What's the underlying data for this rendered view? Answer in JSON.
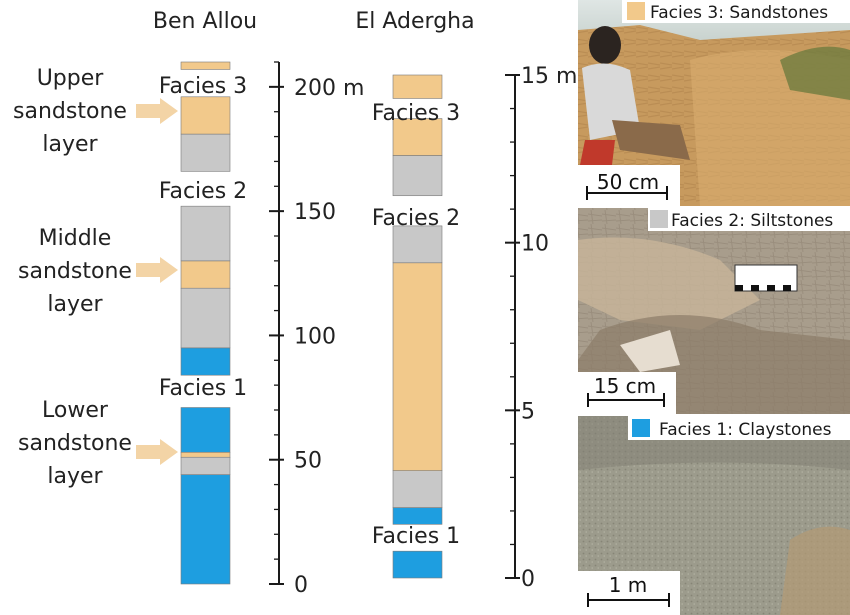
{
  "colors": {
    "sandstone": "#f2c98b",
    "siltstone": "#c8c8c8",
    "claystone": "#1e9ee0",
    "arrow": "#f3d4a6",
    "axis": "#1a1a1a"
  },
  "columns": {
    "ben_allou": {
      "title": "Ben Allou",
      "facies_labels": [
        "Facies 3",
        "Facies 2",
        "Facies 1"
      ],
      "layer_labels": {
        "upper": [
          "Upper",
          "sandstone",
          "layer"
        ],
        "middle": [
          "Middle",
          "sandstone",
          "layer"
        ],
        "lower": [
          "Lower",
          "sandstone",
          "layer"
        ]
      },
      "axis": {
        "unit": "m",
        "max": 210,
        "ticks": [
          {
            "value": 0,
            "label": "0"
          },
          {
            "value": 50,
            "label": "50"
          },
          {
            "value": 100,
            "label": "100"
          },
          {
            "value": 150,
            "label": "150"
          },
          {
            "value": 200,
            "label": "200 m"
          }
        ]
      },
      "segments": [
        {
          "facies": "claystone",
          "from": 0,
          "to": 44
        },
        {
          "facies": "siltstone",
          "from": 44,
          "to": 51
        },
        {
          "facies": "sandstone",
          "from": 51,
          "to": 53
        },
        {
          "facies": "claystone",
          "from": 53,
          "to": 71
        },
        {
          "facies": "claystone",
          "from": 84,
          "to": 95
        },
        {
          "facies": "siltstone",
          "from": 95,
          "to": 119
        },
        {
          "facies": "sandstone",
          "from": 119,
          "to": 130
        },
        {
          "facies": "siltstone",
          "from": 130,
          "to": 152
        },
        {
          "facies": "siltstone",
          "from": 166,
          "to": 181
        },
        {
          "facies": "sandstone",
          "from": 181,
          "to": 196
        },
        {
          "facies": "sandstone",
          "from": 207,
          "to": 210
        }
      ]
    },
    "el_adergha": {
      "title": "El Adergha",
      "facies_labels": [
        "Facies 3",
        "Facies 2",
        "Facies 1"
      ],
      "axis": {
        "unit": "m",
        "max": 15,
        "ticks": [
          {
            "value": 0,
            "label": "0"
          },
          {
            "value": 5,
            "label": "5"
          },
          {
            "value": 10,
            "label": "10"
          },
          {
            "value": 15,
            "label": "15 m"
          }
        ]
      },
      "segments": [
        {
          "facies": "claystone",
          "from": 0,
          "to": 0.8
        },
        {
          "facies": "claystone",
          "from": 1.6,
          "to": 2.1
        },
        {
          "facies": "siltstone",
          "from": 2.1,
          "to": 3.2
        },
        {
          "facies": "sandstone",
          "from": 3.2,
          "to": 9.4
        },
        {
          "facies": "siltstone",
          "from": 9.4,
          "to": 10.5
        },
        {
          "facies": "siltstone",
          "from": 11.4,
          "to": 12.6
        },
        {
          "facies": "sandstone",
          "from": 12.6,
          "to": 13.7
        },
        {
          "facies": "sandstone",
          "from": 14.3,
          "to": 15
        }
      ]
    }
  },
  "photos": [
    {
      "label": "Facies 3: Sandstones",
      "swatch": "sandstone",
      "scale": "50 cm"
    },
    {
      "label": "Facies 2: Siltstones",
      "swatch": "siltstone",
      "scale": "15 cm"
    },
    {
      "label": "Facies 1: Claystones",
      "swatch": "claystone",
      "scale": "1 m"
    }
  ]
}
